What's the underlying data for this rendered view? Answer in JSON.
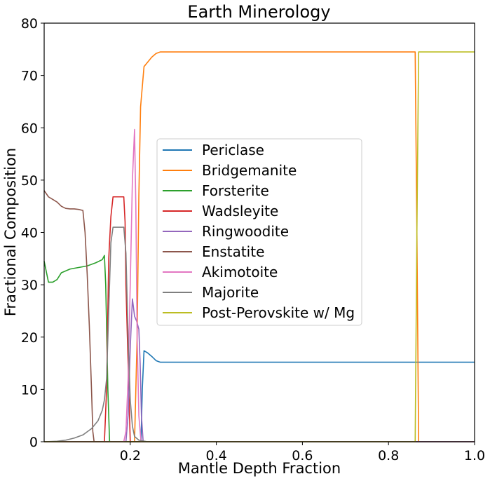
{
  "chart_data": {
    "type": "line",
    "title": "Earth Minerology",
    "xlabel": "Mantle Depth Fraction",
    "ylabel": "Fractional Composition",
    "xlim": [
      0.0,
      1.0
    ],
    "ylim": [
      0,
      80
    ],
    "x_ticks": [
      0.2,
      0.4,
      0.6,
      0.8,
      1.0
    ],
    "x_tick_labels": [
      "0.2",
      "0.4",
      "0.6",
      "0.8",
      "1.0"
    ],
    "y_ticks": [
      0,
      10,
      20,
      30,
      40,
      50,
      60,
      70,
      80
    ],
    "y_tick_labels": [
      "0",
      "10",
      "20",
      "30",
      "40",
      "50",
      "60",
      "70",
      "80"
    ],
    "grid": false,
    "legend_position": "center",
    "series": [
      {
        "name": "Periclase",
        "color": "#1f77b4",
        "points": [
          [
            0.0,
            0
          ],
          [
            0.225,
            0
          ],
          [
            0.228,
            10
          ],
          [
            0.232,
            17.4
          ],
          [
            0.24,
            17
          ],
          [
            0.25,
            16.3
          ],
          [
            0.26,
            15.5
          ],
          [
            0.27,
            15.2
          ],
          [
            0.3,
            15.2
          ],
          [
            0.5,
            15.2
          ],
          [
            0.8,
            15.2
          ],
          [
            1.0,
            15.2
          ]
        ]
      },
      {
        "name": "Bridgemanite",
        "color": "#ff7f0e",
        "points": [
          [
            0.0,
            0
          ],
          [
            0.21,
            0
          ],
          [
            0.216,
            20
          ],
          [
            0.22,
            47
          ],
          [
            0.224,
            64
          ],
          [
            0.232,
            71.7
          ],
          [
            0.24,
            72.5
          ],
          [
            0.25,
            73.5
          ],
          [
            0.26,
            74.2
          ],
          [
            0.27,
            74.5
          ],
          [
            0.3,
            74.5
          ],
          [
            0.5,
            74.5
          ],
          [
            0.862,
            74.5
          ],
          [
            0.866,
            40
          ],
          [
            0.87,
            0
          ],
          [
            1.0,
            0
          ]
        ]
      },
      {
        "name": "Forsterite",
        "color": "#2ca02c",
        "points": [
          [
            0.0,
            34.5
          ],
          [
            0.01,
            30.5
          ],
          [
            0.02,
            30.5
          ],
          [
            0.03,
            31
          ],
          [
            0.04,
            32.3
          ],
          [
            0.06,
            33
          ],
          [
            0.08,
            33.3
          ],
          [
            0.1,
            33.6
          ],
          [
            0.12,
            34.2
          ],
          [
            0.135,
            34.8
          ],
          [
            0.14,
            35.6
          ],
          [
            0.143,
            30
          ],
          [
            0.148,
            10
          ],
          [
            0.152,
            0
          ],
          [
            1.0,
            0
          ]
        ]
      },
      {
        "name": "Wadsleyite",
        "color": "#d62728",
        "points": [
          [
            0.0,
            0
          ],
          [
            0.14,
            0
          ],
          [
            0.145,
            10
          ],
          [
            0.15,
            35
          ],
          [
            0.155,
            43
          ],
          [
            0.16,
            46.8
          ],
          [
            0.17,
            46.8
          ],
          [
            0.185,
            46.8
          ],
          [
            0.188,
            42
          ],
          [
            0.19,
            30
          ],
          [
            0.195,
            15
          ],
          [
            0.2,
            0
          ],
          [
            1.0,
            0
          ]
        ]
      },
      {
        "name": "Ringwoodite",
        "color": "#9467bd",
        "points": [
          [
            0.0,
            0
          ],
          [
            0.19,
            0
          ],
          [
            0.195,
            5
          ],
          [
            0.2,
            18
          ],
          [
            0.205,
            27.3
          ],
          [
            0.21,
            24
          ],
          [
            0.215,
            23
          ],
          [
            0.22,
            21.5
          ],
          [
            0.223,
            15
          ],
          [
            0.226,
            5
          ],
          [
            0.23,
            0
          ],
          [
            1.0,
            0
          ]
        ]
      },
      {
        "name": "Enstatite",
        "color": "#8c564b",
        "points": [
          [
            0.0,
            48
          ],
          [
            0.01,
            46.8
          ],
          [
            0.02,
            46.3
          ],
          [
            0.03,
            45.8
          ],
          [
            0.04,
            45
          ],
          [
            0.05,
            44.6
          ],
          [
            0.06,
            44.5
          ],
          [
            0.07,
            44.5
          ],
          [
            0.08,
            44.4
          ],
          [
            0.09,
            44.2
          ],
          [
            0.095,
            40
          ],
          [
            0.1,
            32
          ],
          [
            0.105,
            22
          ],
          [
            0.11,
            10
          ],
          [
            0.113,
            2
          ],
          [
            0.116,
            0
          ],
          [
            1.0,
            0
          ]
        ]
      },
      {
        "name": "Akimotoite",
        "color": "#e377c2",
        "points": [
          [
            0.0,
            0
          ],
          [
            0.185,
            0
          ],
          [
            0.19,
            2
          ],
          [
            0.195,
            12
          ],
          [
            0.2,
            30
          ],
          [
            0.205,
            50
          ],
          [
            0.21,
            59.7
          ],
          [
            0.213,
            45
          ],
          [
            0.216,
            20
          ],
          [
            0.22,
            5
          ],
          [
            0.225,
            0
          ],
          [
            1.0,
            0
          ]
        ]
      },
      {
        "name": "Majorite",
        "color": "#7f7f7f",
        "points": [
          [
            0.0,
            0
          ],
          [
            0.03,
            0.1
          ],
          [
            0.05,
            0.3
          ],
          [
            0.07,
            0.7
          ],
          [
            0.09,
            1.3
          ],
          [
            0.11,
            2.5
          ],
          [
            0.125,
            4
          ],
          [
            0.135,
            6
          ],
          [
            0.14,
            8
          ],
          [
            0.145,
            12
          ],
          [
            0.15,
            25
          ],
          [
            0.155,
            38
          ],
          [
            0.16,
            41
          ],
          [
            0.17,
            41
          ],
          [
            0.185,
            41
          ],
          [
            0.19,
            36
          ],
          [
            0.195,
            20
          ],
          [
            0.2,
            8
          ],
          [
            0.205,
            3
          ],
          [
            0.21,
            1
          ],
          [
            0.22,
            0.3
          ],
          [
            0.24,
            0
          ],
          [
            1.0,
            0
          ]
        ]
      },
      {
        "name": "Post-Perovskite w/ Mg",
        "color": "#bcbd22",
        "points": [
          [
            0.0,
            0
          ],
          [
            0.862,
            0
          ],
          [
            0.866,
            40
          ],
          [
            0.87,
            74.5
          ],
          [
            0.9,
            74.5
          ],
          [
            1.0,
            74.5
          ]
        ]
      }
    ]
  }
}
